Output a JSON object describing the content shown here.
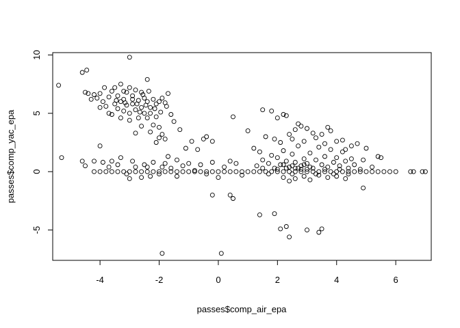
{
  "chart_data": {
    "type": "scatter",
    "title": "",
    "xlabel": "passes$comp_air_epa",
    "ylabel": "passes$comp_yac_epa",
    "xlim": [
      -5.6,
      7.2
    ],
    "ylim": [
      -7.6,
      10.2
    ],
    "x_ticks": [
      "-4",
      "-2",
      "0",
      "2",
      "4",
      "6"
    ],
    "y_ticks": [
      "-5",
      "0",
      "5",
      "10"
    ],
    "grid": false,
    "legend": "none",
    "marker": "open-circle",
    "marker_color": "#000000",
    "series": [
      {
        "points": [
          [
            -5.4,
            7.4
          ],
          [
            -5.3,
            1.2
          ],
          [
            -4.6,
            8.5
          ],
          [
            -4.45,
            8.7
          ],
          [
            -3.0,
            9.8
          ],
          [
            -2.4,
            7.9
          ],
          [
            -4.5,
            6.8
          ],
          [
            -4.4,
            6.7
          ],
          [
            -4.2,
            6.6
          ],
          [
            -4.0,
            6.7
          ],
          [
            -4.1,
            6.3
          ],
          [
            -3.9,
            6.0
          ],
          [
            -3.8,
            5.6
          ],
          [
            -3.7,
            6.4
          ],
          [
            -3.6,
            6.9
          ],
          [
            -3.5,
            7.2
          ],
          [
            -3.4,
            6.5
          ],
          [
            -3.3,
            7.5
          ],
          [
            -3.2,
            6.2
          ],
          [
            -3.1,
            6.8
          ],
          [
            -3.0,
            7.2
          ],
          [
            -2.9,
            6.5
          ],
          [
            -2.8,
            7.0
          ],
          [
            -2.7,
            6.1
          ],
          [
            -2.6,
            6.8
          ],
          [
            -2.5,
            6.3
          ],
          [
            -2.4,
            6.0
          ],
          [
            -2.3,
            5.5
          ],
          [
            -2.2,
            6.2
          ],
          [
            -2.1,
            5.8
          ],
          [
            -2.0,
            6.0
          ],
          [
            -1.9,
            6.3
          ],
          [
            -1.8,
            5.9
          ],
          [
            -1.7,
            6.7
          ],
          [
            -3.7,
            5.0
          ],
          [
            -3.5,
            5.8
          ],
          [
            -3.4,
            5.4
          ],
          [
            -3.3,
            6.0
          ],
          [
            -3.2,
            5.2
          ],
          [
            -3.1,
            5.7
          ],
          [
            -3.0,
            5.0
          ],
          [
            -2.9,
            5.8
          ],
          [
            -2.8,
            5.3
          ],
          [
            -2.7,
            4.6
          ],
          [
            -2.6,
            5.5
          ],
          [
            -2.5,
            5.0
          ],
          [
            -2.4,
            4.6
          ],
          [
            -2.3,
            5.0
          ],
          [
            -2.2,
            4.0
          ],
          [
            -2.1,
            4.7
          ],
          [
            -2.0,
            3.8
          ],
          [
            -1.9,
            3.2
          ],
          [
            -1.8,
            2.8
          ],
          [
            -1.6,
            4.9
          ],
          [
            -1.5,
            4.3
          ],
          [
            -1.3,
            3.6
          ],
          [
            -1.1,
            2.0
          ],
          [
            -0.9,
            2.6
          ],
          [
            -0.7,
            1.9
          ],
          [
            -2.3,
            3.4
          ],
          [
            -2.1,
            2.5
          ],
          [
            -2.0,
            2.9
          ],
          [
            -1.7,
            1.3
          ],
          [
            -1.4,
            1.0
          ],
          [
            -2.6,
            3.9
          ],
          [
            -2.8,
            3.3
          ],
          [
            -3.0,
            4.4
          ],
          [
            -3.3,
            4.6
          ],
          [
            -3.6,
            4.9
          ],
          [
            -4.0,
            5.5
          ],
          [
            -4.3,
            6.2
          ],
          [
            -3.85,
            7.2
          ],
          [
            -3.2,
            6.9
          ],
          [
            -2.9,
            6.2
          ],
          [
            -2.75,
            5.8
          ],
          [
            -2.55,
            6.6
          ],
          [
            -2.35,
            6.9
          ],
          [
            -2.15,
            5.4
          ],
          [
            -1.95,
            5.1
          ],
          [
            -1.75,
            5.6
          ],
          [
            -3.45,
            6.1
          ],
          [
            -3.15,
            5.9
          ],
          [
            -2.65,
            5.1
          ],
          [
            -2.45,
            5.7
          ],
          [
            -4.6,
            0.9
          ],
          [
            -4.5,
            0.5
          ],
          [
            -4.2,
            0.9
          ],
          [
            -4.0,
            2.2
          ],
          [
            -3.9,
            0.8
          ],
          [
            -3.6,
            0.9
          ],
          [
            -3.3,
            1.2
          ],
          [
            -3.1,
            -0.2
          ],
          [
            -3.0,
            -0.6
          ],
          [
            -2.8,
            0.4
          ],
          [
            -2.6,
            -0.5
          ],
          [
            -2.4,
            0.4
          ],
          [
            -2.2,
            0.8
          ],
          [
            -2.0,
            -0.2
          ],
          [
            -1.8,
            0.7
          ],
          [
            -1.6,
            0.3
          ],
          [
            -1.4,
            -0.4
          ],
          [
            -1.2,
            0.5
          ],
          [
            -1.0,
            0.7
          ],
          [
            -0.8,
            0.1
          ],
          [
            -0.6,
            0.6
          ],
          [
            -0.4,
            -0.2
          ],
          [
            -0.2,
            0.8
          ],
          [
            0.0,
            -0.5
          ],
          [
            0.2,
            0.4
          ],
          [
            0.4,
            0.9
          ],
          [
            0.6,
            0.7
          ],
          [
            0.8,
            -0.3
          ],
          [
            -3.4,
            0.6
          ],
          [
            -2.9,
            0.9
          ],
          [
            -2.5,
            0.6
          ],
          [
            -2.3,
            -0.4
          ],
          [
            -1.9,
            0.4
          ],
          [
            -3.7,
            0.4
          ],
          [
            -0.5,
            2.8
          ],
          [
            -0.4,
            3.0
          ],
          [
            -0.2,
            2.6
          ],
          [
            0.5,
            4.7
          ],
          [
            1.0,
            3.5
          ],
          [
            -1.9,
            -7.0
          ],
          [
            0.1,
            -7.0
          ],
          [
            -0.2,
            -2.0
          ],
          [
            0.4,
            -2.0
          ],
          [
            0.5,
            -2.3
          ],
          [
            -4.2,
            0.0
          ],
          [
            -4.0,
            0.0
          ],
          [
            -3.8,
            0.0
          ],
          [
            -3.6,
            0.0
          ],
          [
            -3.4,
            0.0
          ],
          [
            -3.2,
            0.0
          ],
          [
            -3.0,
            0.0
          ],
          [
            -2.8,
            0.0
          ],
          [
            -2.6,
            0.0
          ],
          [
            -2.4,
            0.0
          ],
          [
            -2.2,
            0.0
          ],
          [
            -2.0,
            0.0
          ],
          [
            -1.8,
            0.0
          ],
          [
            -1.6,
            0.0
          ],
          [
            -1.4,
            0.0
          ],
          [
            -1.2,
            0.0
          ],
          [
            -1.0,
            0.0
          ],
          [
            -0.8,
            0.0
          ],
          [
            -0.6,
            0.0
          ],
          [
            -0.4,
            0.0
          ],
          [
            -0.2,
            0.0
          ],
          [
            0.0,
            0.0
          ],
          [
            0.2,
            0.0
          ],
          [
            0.4,
            0.0
          ],
          [
            0.6,
            0.0
          ],
          [
            0.8,
            0.0
          ],
          [
            1.0,
            0.0
          ],
          [
            1.2,
            0.0
          ],
          [
            1.4,
            0.0
          ],
          [
            1.6,
            0.0
          ],
          [
            1.8,
            0.0
          ],
          [
            2.0,
            0.0
          ],
          [
            2.2,
            0.0
          ],
          [
            2.4,
            0.0
          ],
          [
            2.6,
            0.0
          ],
          [
            2.8,
            0.0
          ],
          [
            3.0,
            0.0
          ],
          [
            3.2,
            0.0
          ],
          [
            3.4,
            0.0
          ],
          [
            3.6,
            0.0
          ],
          [
            3.8,
            0.0
          ],
          [
            4.0,
            0.0
          ],
          [
            4.2,
            0.0
          ],
          [
            4.4,
            0.0
          ],
          [
            4.6,
            0.0
          ],
          [
            4.8,
            0.0
          ],
          [
            5.0,
            0.0
          ],
          [
            5.2,
            0.0
          ],
          [
            5.4,
            0.0
          ],
          [
            5.6,
            0.0
          ],
          [
            5.8,
            0.0
          ],
          [
            6.0,
            0.0
          ],
          [
            6.5,
            0.0
          ],
          [
            6.6,
            0.0
          ],
          [
            6.9,
            0.0
          ],
          [
            7.0,
            0.0
          ],
          [
            1.3,
            0.5
          ],
          [
            1.5,
            1.0
          ],
          [
            1.7,
            0.7
          ],
          [
            1.8,
            1.4
          ],
          [
            1.9,
            0.3
          ],
          [
            2.0,
            1.2
          ],
          [
            2.1,
            0.6
          ],
          [
            2.2,
            1.8
          ],
          [
            2.3,
            0.9
          ],
          [
            2.4,
            0.4
          ],
          [
            2.5,
            1.5
          ],
          [
            2.6,
            0.8
          ],
          [
            2.7,
            2.2
          ],
          [
            2.8,
            0.5
          ],
          [
            2.9,
            1.1
          ],
          [
            3.0,
            0.7
          ],
          [
            3.1,
            1.6
          ],
          [
            3.2,
            0.3
          ],
          [
            3.3,
            1.0
          ],
          [
            3.4,
            2.1
          ],
          [
            3.5,
            0.6
          ],
          [
            3.6,
            1.3
          ],
          [
            3.7,
            0.4
          ],
          [
            3.8,
            1.9
          ],
          [
            3.9,
            0.8
          ],
          [
            4.0,
            1.2
          ],
          [
            4.1,
            0.5
          ],
          [
            4.2,
            1.7
          ],
          [
            4.3,
            0.9
          ],
          [
            4.4,
            0.3
          ],
          [
            4.5,
            1.1
          ],
          [
            4.6,
            0.6
          ],
          [
            4.7,
            2.4
          ],
          [
            4.8,
            0.2
          ],
          [
            4.9,
            1.0
          ],
          [
            5.0,
            2.0
          ],
          [
            5.2,
            0.4
          ],
          [
            5.4,
            1.3
          ],
          [
            5.5,
            1.2
          ],
          [
            1.5,
            5.3
          ],
          [
            1.8,
            5.2
          ],
          [
            2.0,
            4.6
          ],
          [
            2.2,
            4.9
          ],
          [
            2.3,
            4.8
          ],
          [
            2.6,
            3.6
          ],
          [
            2.7,
            4.1
          ],
          [
            2.8,
            3.9
          ],
          [
            3.0,
            3.7
          ],
          [
            3.2,
            3.3
          ],
          [
            3.5,
            3.2
          ],
          [
            3.7,
            3.8
          ],
          [
            3.8,
            3.5
          ],
          [
            4.2,
            2.7
          ],
          [
            4.5,
            2.2
          ],
          [
            1.6,
            3.0
          ],
          [
            1.9,
            2.8
          ],
          [
            2.1,
            2.5
          ],
          [
            2.4,
            3.2
          ],
          [
            2.5,
            2.8
          ],
          [
            2.9,
            2.6
          ],
          [
            3.3,
            2.9
          ],
          [
            3.6,
            2.4
          ],
          [
            4.0,
            2.6
          ],
          [
            4.3,
            1.9
          ],
          [
            1.2,
            2.0
          ],
          [
            1.4,
            1.7
          ],
          [
            2.2,
            -0.5
          ],
          [
            2.4,
            -0.8
          ],
          [
            2.6,
            -0.6
          ],
          [
            2.9,
            -0.4
          ],
          [
            3.1,
            -0.7
          ],
          [
            3.4,
            -0.3
          ],
          [
            3.7,
            -0.5
          ],
          [
            4.0,
            -0.4
          ],
          [
            4.3,
            -0.6
          ],
          [
            4.9,
            -1.4
          ],
          [
            1.4,
            -3.7
          ],
          [
            1.9,
            -3.6
          ],
          [
            2.1,
            -4.9
          ],
          [
            2.3,
            -4.7
          ],
          [
            2.4,
            -5.6
          ],
          [
            3.0,
            -5.0
          ],
          [
            3.4,
            -5.2
          ],
          [
            3.5,
            -4.9
          ],
          [
            1.5,
            0.3
          ],
          [
            1.7,
            -0.2
          ],
          [
            2.0,
            0.2
          ],
          [
            2.3,
            0.3
          ],
          [
            2.5,
            -0.2
          ],
          [
            2.7,
            0.3
          ],
          [
            3.0,
            0.2
          ],
          [
            3.3,
            -0.2
          ],
          [
            3.6,
            0.2
          ],
          [
            3.9,
            -0.2
          ],
          [
            4.1,
            0.2
          ],
          [
            4.4,
            -0.2
          ],
          [
            2.2,
            0.6
          ],
          [
            2.5,
            0.5
          ],
          [
            2.8,
            0.2
          ],
          [
            3.1,
            0.4
          ],
          [
            2.6,
            0.3
          ],
          [
            2.9,
            0.6
          ]
        ]
      }
    ]
  }
}
